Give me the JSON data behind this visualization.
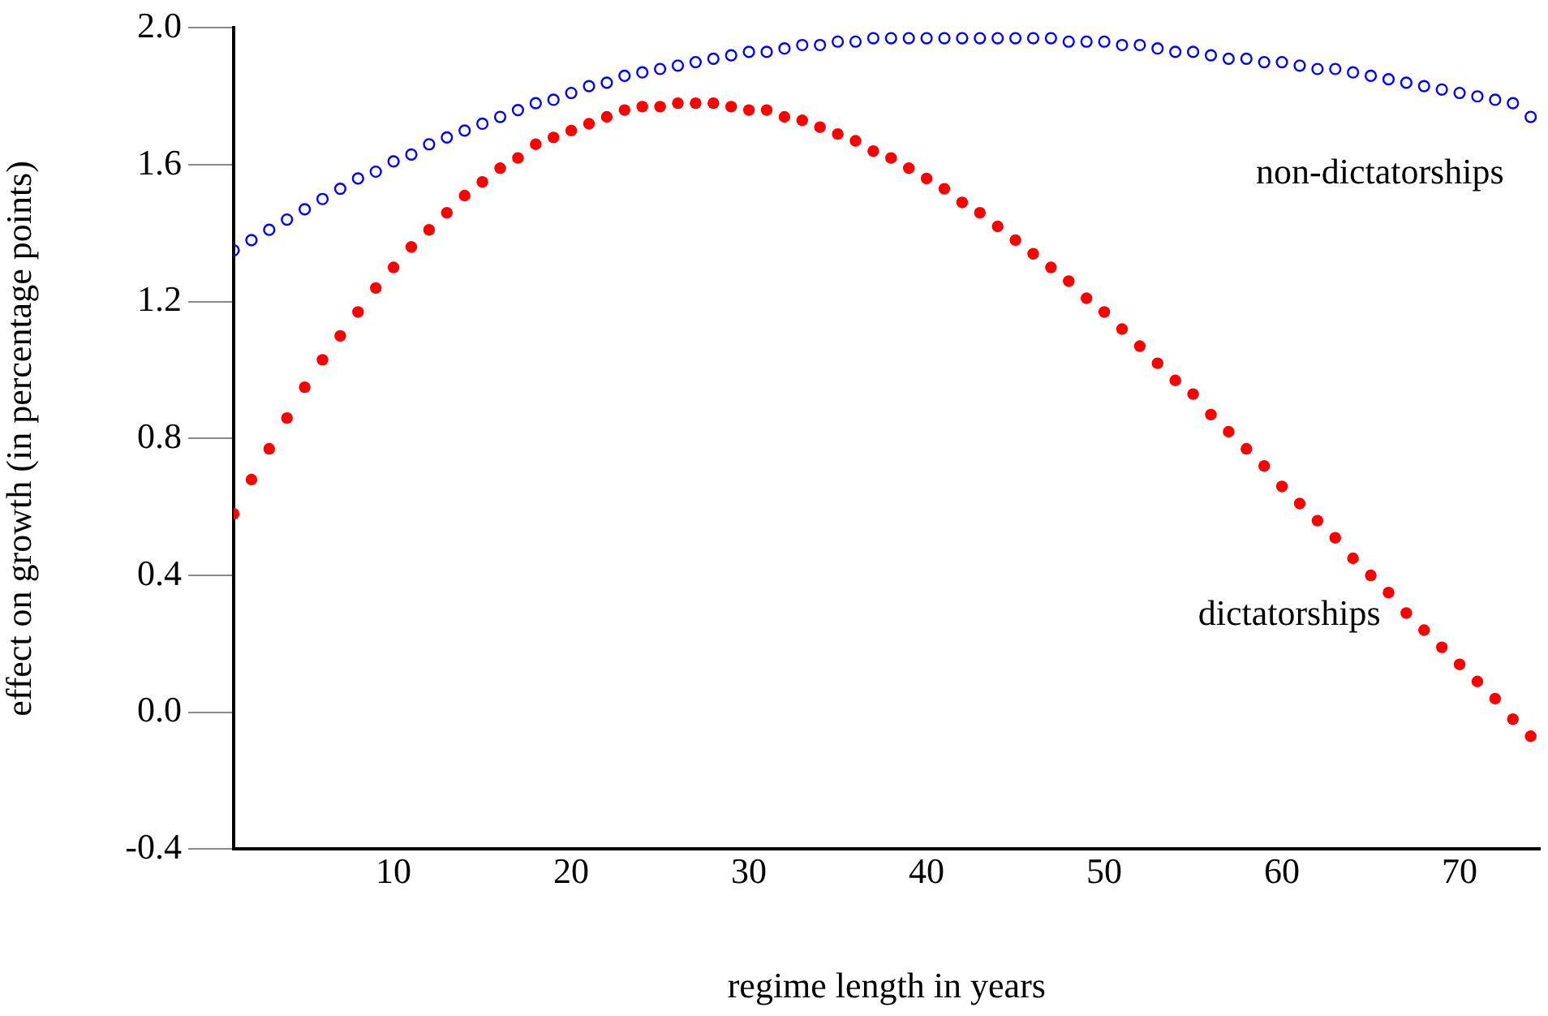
{
  "chart_data": {
    "type": "scatter",
    "xlabel": "regime length in years",
    "ylabel": "effect on growth (in percentage points)",
    "x": [
      1,
      2,
      3,
      4,
      5,
      6,
      7,
      8,
      9,
      10,
      11,
      12,
      13,
      14,
      15,
      16,
      17,
      18,
      19,
      20,
      21,
      22,
      23,
      24,
      25,
      26,
      27,
      28,
      29,
      30,
      31,
      32,
      33,
      34,
      35,
      36,
      37,
      38,
      39,
      40,
      41,
      42,
      43,
      44,
      45,
      46,
      47,
      48,
      49,
      50,
      51,
      52,
      53,
      54,
      55,
      56,
      57,
      58,
      59,
      60,
      61,
      62,
      63,
      64,
      65,
      66,
      67,
      68,
      69,
      70,
      71,
      72,
      73,
      74
    ],
    "series": [
      {
        "name": "non-dictatorships",
        "color": "#0000ff",
        "values": [
          1.35,
          1.38,
          1.41,
          1.44,
          1.47,
          1.5,
          1.53,
          1.56,
          1.58,
          1.61,
          1.63,
          1.66,
          1.68,
          1.7,
          1.72,
          1.74,
          1.76,
          1.78,
          1.79,
          1.81,
          1.83,
          1.84,
          1.86,
          1.87,
          1.88,
          1.89,
          1.9,
          1.91,
          1.92,
          1.93,
          1.93,
          1.94,
          1.95,
          1.95,
          1.96,
          1.96,
          1.97,
          1.97,
          1.97,
          1.97,
          1.97,
          1.97,
          1.97,
          1.97,
          1.97,
          1.97,
          1.97,
          1.96,
          1.96,
          1.96,
          1.95,
          1.95,
          1.94,
          1.93,
          1.93,
          1.92,
          1.91,
          1.91,
          1.9,
          1.9,
          1.89,
          1.88,
          1.88,
          1.87,
          1.86,
          1.85,
          1.84,
          1.83,
          1.82,
          1.81,
          1.8,
          1.79,
          1.78,
          1.74
        ]
      },
      {
        "name": "dictatorships",
        "color": "#ff0000",
        "values": [
          0.58,
          0.68,
          0.77,
          0.86,
          0.95,
          1.03,
          1.1,
          1.17,
          1.24,
          1.3,
          1.36,
          1.41,
          1.46,
          1.51,
          1.55,
          1.59,
          1.62,
          1.66,
          1.68,
          1.7,
          1.72,
          1.74,
          1.76,
          1.77,
          1.77,
          1.78,
          1.78,
          1.78,
          1.77,
          1.76,
          1.76,
          1.74,
          1.73,
          1.71,
          1.69,
          1.67,
          1.64,
          1.62,
          1.59,
          1.56,
          1.53,
          1.49,
          1.46,
          1.42,
          1.38,
          1.34,
          1.3,
          1.26,
          1.21,
          1.17,
          1.12,
          1.07,
          1.02,
          0.97,
          0.93,
          0.87,
          0.82,
          0.77,
          0.72,
          0.66,
          0.61,
          0.56,
          0.51,
          0.45,
          0.4,
          0.35,
          0.29,
          0.24,
          0.19,
          0.14,
          0.09,
          0.04,
          -0.02,
          -0.07
        ]
      }
    ],
    "xlim": [
      1,
      74.5
    ],
    "xticks": [
      10,
      20,
      30,
      40,
      50,
      60,
      70
    ],
    "ylim": [
      -0.4,
      2.0
    ],
    "yticks": [
      -0.4,
      {
        "value": 0,
        "label": "0.0"
      },
      0.4,
      0.8,
      1.2,
      1.6,
      {
        "value": 2,
        "label": "2.0"
      }
    ],
    "grid": false,
    "legend": false,
    "marker": "circle"
  }
}
